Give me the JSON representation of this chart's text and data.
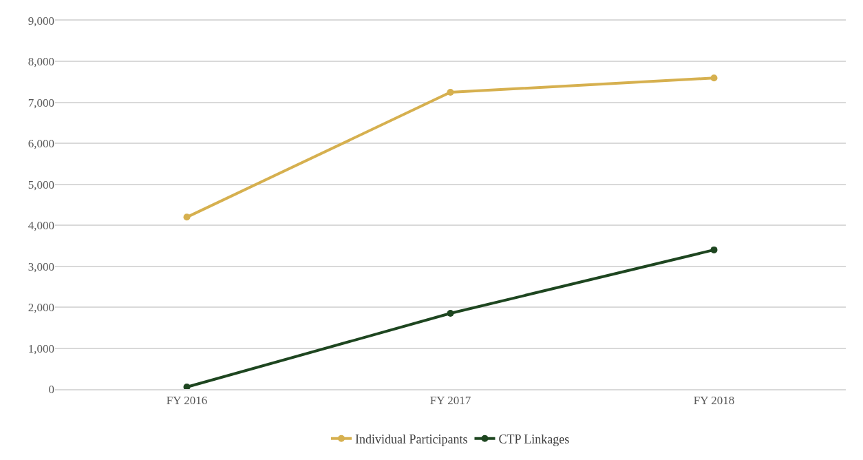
{
  "chart_data": {
    "type": "line",
    "categories": [
      "FY 2016",
      "FY 2017",
      "FY 2018"
    ],
    "series": [
      {
        "name": "Individual Participants",
        "color": "#d6b04f",
        "values": [
          4200,
          7250,
          7600
        ]
      },
      {
        "name": "CTP Linkages",
        "color": "#1e4620",
        "values": [
          50,
          1850,
          3400
        ]
      }
    ],
    "ylim": [
      0,
      9000
    ],
    "yticks": [
      {
        "value": 0,
        "label": "0"
      },
      {
        "value": 1000,
        "label": "1,000"
      },
      {
        "value": 2000,
        "label": "2,000"
      },
      {
        "value": 3000,
        "label": "3,000"
      },
      {
        "value": 4000,
        "label": "4,000"
      },
      {
        "value": 5000,
        "label": "5,000"
      },
      {
        "value": 6000,
        "label": "6,000"
      },
      {
        "value": 7000,
        "label": "7,000"
      },
      {
        "value": 8000,
        "label": "8,000"
      },
      {
        "value": 9000,
        "label": "9,000"
      }
    ],
    "grid": "y",
    "legend": "bottom",
    "marker": "circle",
    "line_style": "solid"
  }
}
